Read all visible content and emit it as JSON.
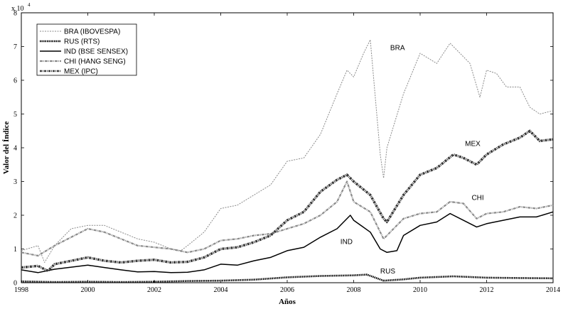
{
  "chart_data": {
    "type": "line",
    "xlabel": "Años",
    "ylabel": "Valor del Índice",
    "y_exponent_label": "x 10",
    "y_exponent_power": "4",
    "xlim": [
      1998,
      2014
    ],
    "ylim": [
      0,
      8
    ],
    "x_ticks": [
      "1998",
      "2000",
      "2002",
      "2004",
      "2006",
      "2008",
      "2010",
      "2012",
      "2014"
    ],
    "y_ticks": [
      "0",
      "1",
      "2",
      "3",
      "4",
      "5",
      "6",
      "7",
      "8"
    ],
    "grid": false,
    "legend_position": "top-left",
    "series": [
      {
        "name": "BRA (IBOVESPA)",
        "annotation": "BRA",
        "color": "#8a8a8a",
        "style": "dotted",
        "x": [
          1998,
          1998.5,
          1998.7,
          1999,
          1999.5,
          2000,
          2000.5,
          2001,
          2001.5,
          2002,
          2002.5,
          2002.8,
          2003,
          2003.5,
          2004,
          2004.5,
          2005,
          2005.5,
          2006,
          2006.5,
          2007,
          2007.5,
          2007.8,
          2008,
          2008.3,
          2008.5,
          2008.8,
          2008.9,
          2009,
          2009.5,
          2010,
          2010.5,
          2010.9,
          2011.2,
          2011.5,
          2011.8,
          2012,
          2012.3,
          2012.6,
          2013,
          2013.3,
          2013.6,
          2014
        ],
        "y": [
          0.95,
          1.1,
          0.6,
          1.1,
          1.6,
          1.7,
          1.7,
          1.5,
          1.3,
          1.2,
          1.0,
          0.95,
          1.1,
          1.5,
          2.2,
          2.3,
          2.6,
          2.9,
          3.6,
          3.7,
          4.4,
          5.6,
          6.3,
          6.1,
          6.8,
          7.2,
          3.8,
          3.1,
          4.0,
          5.6,
          6.8,
          6.5,
          7.1,
          6.8,
          6.5,
          5.5,
          6.3,
          6.2,
          5.8,
          5.8,
          5.2,
          5.0,
          5.1
        ]
      },
      {
        "name": "RUS (RTS)",
        "annotation": "RUS",
        "color": "#000000",
        "style": "dotted-thick",
        "x": [
          1998,
          1999,
          2000,
          2001,
          2002,
          2003,
          2004,
          2005,
          2006,
          2007,
          2008,
          2008.4,
          2008.9,
          2009.5,
          2010,
          2011,
          2012,
          2013,
          2014
        ],
        "y": [
          0.04,
          0.02,
          0.03,
          0.02,
          0.03,
          0.05,
          0.06,
          0.09,
          0.16,
          0.2,
          0.22,
          0.24,
          0.06,
          0.1,
          0.15,
          0.19,
          0.15,
          0.14,
          0.13
        ]
      },
      {
        "name": "IND (BSE SENSEX)",
        "annotation": "IND",
        "color": "#000000",
        "style": "solid",
        "x": [
          1998,
          1998.5,
          1999,
          2000,
          2000.5,
          2001,
          2001.5,
          2002,
          2002.5,
          2003,
          2003.5,
          2004,
          2004.5,
          2005,
          2005.5,
          2006,
          2006.5,
          2007,
          2007.5,
          2007.9,
          2008,
          2008.5,
          2008.8,
          2009,
          2009.3,
          2009.5,
          2010,
          2010.5,
          2010.9,
          2011.3,
          2011.7,
          2012,
          2012.5,
          2013,
          2013.5,
          2014
        ],
        "y": [
          0.38,
          0.3,
          0.4,
          0.52,
          0.45,
          0.38,
          0.32,
          0.33,
          0.3,
          0.31,
          0.38,
          0.55,
          0.52,
          0.65,
          0.75,
          0.95,
          1.05,
          1.35,
          1.6,
          2.0,
          1.85,
          1.5,
          1.0,
          0.9,
          0.95,
          1.4,
          1.7,
          1.8,
          2.05,
          1.85,
          1.65,
          1.75,
          1.85,
          1.95,
          1.95,
          2.1
        ]
      },
      {
        "name": "CHI (HANG SENG)",
        "annotation": "CHI",
        "color": "#8c8c8c",
        "style": "dash-dot",
        "x": [
          1998,
          1998.5,
          1999,
          2000,
          2000.5,
          2001,
          2001.5,
          2002,
          2002.5,
          2003,
          2003.5,
          2004,
          2004.5,
          2005,
          2005.5,
          2006,
          2006.5,
          2007,
          2007.5,
          2007.8,
          2008,
          2008.5,
          2008.9,
          2009,
          2009.5,
          2010,
          2010.5,
          2010.9,
          2011.3,
          2011.7,
          2012,
          2012.5,
          2013,
          2013.5,
          2014
        ],
        "y": [
          0.9,
          0.8,
          1.1,
          1.6,
          1.5,
          1.3,
          1.1,
          1.05,
          1.0,
          0.9,
          1.0,
          1.25,
          1.3,
          1.4,
          1.45,
          1.6,
          1.75,
          2.0,
          2.4,
          3.0,
          2.4,
          2.1,
          1.3,
          1.4,
          1.9,
          2.05,
          2.1,
          2.4,
          2.35,
          1.9,
          2.05,
          2.1,
          2.25,
          2.2,
          2.3
        ]
      },
      {
        "name": "MEX (IPC)",
        "annotation": "MEX",
        "color": "#3a3a3a",
        "style": "dash-dot-thick",
        "x": [
          1998,
          1998.5,
          1998.8,
          1999,
          2000,
          2000.5,
          2001,
          2001.5,
          2002,
          2002.5,
          2003,
          2003.5,
          2004,
          2004.5,
          2005,
          2005.5,
          2006,
          2006.5,
          2007,
          2007.5,
          2007.8,
          2008,
          2008.5,
          2008.9,
          2009,
          2009.5,
          2010,
          2010.5,
          2011,
          2011.3,
          2011.7,
          2012,
          2012.5,
          2013,
          2013.3,
          2013.6,
          2014
        ],
        "y": [
          0.45,
          0.5,
          0.35,
          0.55,
          0.75,
          0.65,
          0.6,
          0.65,
          0.68,
          0.6,
          0.62,
          0.75,
          1.0,
          1.05,
          1.2,
          1.4,
          1.85,
          2.1,
          2.7,
          3.05,
          3.2,
          3.0,
          2.6,
          1.9,
          1.8,
          2.6,
          3.2,
          3.4,
          3.8,
          3.7,
          3.5,
          3.8,
          4.1,
          4.3,
          4.5,
          4.2,
          4.25
        ]
      }
    ]
  }
}
